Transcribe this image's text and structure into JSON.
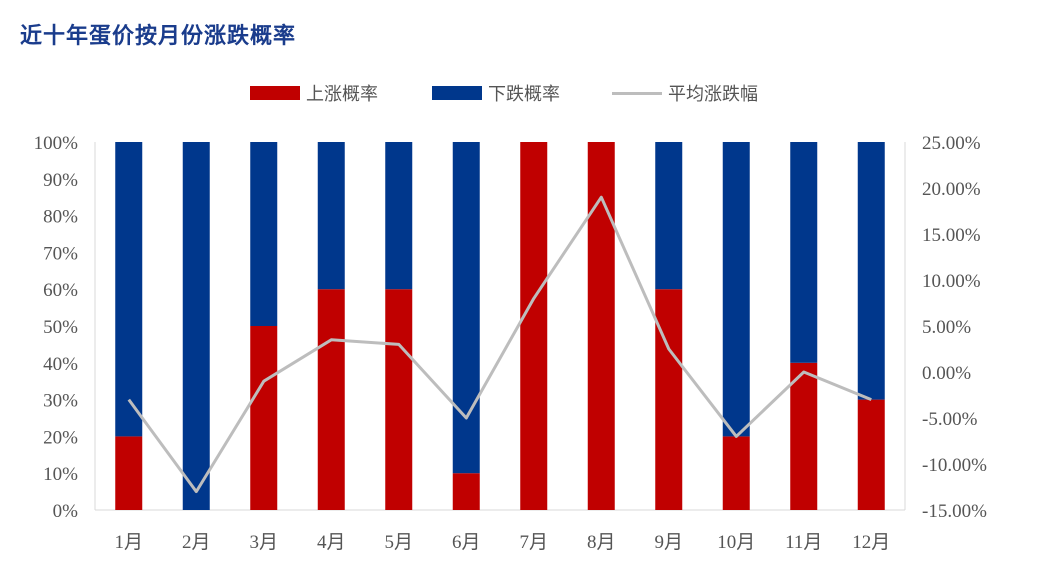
{
  "title": "近十年蛋价按月份涨跌概率",
  "colors": {
    "up": "#c00000",
    "down": "#00378c",
    "line": "#bdbdbd"
  },
  "chart_data": {
    "type": "bar",
    "stacked": true,
    "categories": [
      "1月",
      "2月",
      "3月",
      "4月",
      "5月",
      "6月",
      "7月",
      "8月",
      "9月",
      "10月",
      "11月",
      "12月"
    ],
    "series": [
      {
        "name": "上涨概率",
        "axis": "left",
        "values": [
          20,
          0,
          50,
          60,
          60,
          10,
          100,
          100,
          60,
          20,
          40,
          30
        ]
      },
      {
        "name": "下跌概率",
        "axis": "left",
        "values": [
          80,
          100,
          50,
          40,
          40,
          90,
          0,
          0,
          40,
          80,
          60,
          70
        ]
      },
      {
        "name": "平均涨跌幅",
        "type": "line",
        "axis": "right",
        "values": [
          -3.0,
          -13.0,
          -1.0,
          3.5,
          3.0,
          -5.0,
          8.0,
          19.0,
          2.5,
          -7.0,
          0.0,
          -3.0
        ]
      }
    ],
    "y_left": {
      "ticks": [
        "0%",
        "10%",
        "20%",
        "30%",
        "40%",
        "50%",
        "60%",
        "70%",
        "80%",
        "90%",
        "100%"
      ],
      "range": [
        0,
        100
      ]
    },
    "y_right": {
      "ticks": [
        "-15.00%",
        "-10.00%",
        "-5.00%",
        "0.00%",
        "5.00%",
        "10.00%",
        "15.00%",
        "20.00%",
        "25.00%"
      ],
      "range": [
        -15,
        25
      ]
    },
    "grid": false,
    "legend_position": "top"
  }
}
